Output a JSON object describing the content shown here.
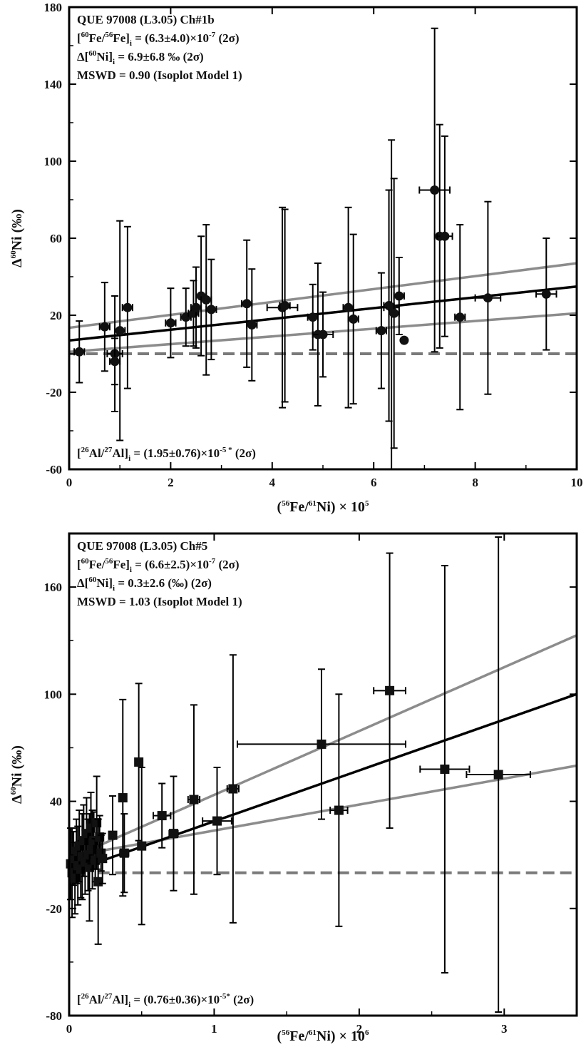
{
  "chart_data": [
    {
      "type": "scatter",
      "xlim": [
        0,
        10
      ],
      "ylim": [
        -60,
        180
      ],
      "x_ticks": [
        0,
        2,
        4,
        6,
        8,
        10
      ],
      "y_ticks": [
        -60,
        -20,
        20,
        60,
        100,
        140,
        180
      ],
      "x_tick_labels": [
        "0",
        "2",
        "4",
        "6",
        "8",
        "10"
      ],
      "y_tick_labels": [
        "-60",
        "-20",
        "20",
        "60",
        "100",
        "140",
        "180"
      ],
      "xlabel_lines": {
        "a": "(",
        "b": "56",
        "c": "Fe/",
        "d": "61",
        "e": "Ni) × 10",
        "f": "5"
      },
      "ylabel_lines": {
        "a": "Δ",
        "b": "60",
        "c": "Ni (‰)"
      },
      "annotations": {
        "line1": "QUE 97008 (L3.05) Ch#1b",
        "line2": {
          "a": "[",
          "b": "60",
          "c": "Fe/",
          "d": "56",
          "e": "Fe]",
          "f": "i",
          "g": " = (6.3±4.0)×10",
          "h": "-7",
          "i": " (2σ)"
        },
        "line3": {
          "a": "Δ[",
          "b": "60",
          "c": "Ni]",
          "d": "i",
          "e": " = 6.9±6.8 ‰ (2σ)"
        },
        "line4": "MSWD = 0.90 (Isoplot Model 1)",
        "line5": {
          "a": "[",
          "b": "26",
          "c": "Al/",
          "d": "27",
          "e": "Al]",
          "f": "i",
          "g": "  = (1.95±0.76)×10",
          "h": "-5 *",
          "i": " (2σ)"
        }
      },
      "points": [
        {
          "x": 0.2,
          "y": 1,
          "yerr": 16,
          "xerr": 0.1
        },
        {
          "x": 0.7,
          "y": 14,
          "yerr": 23,
          "xerr": 0.1
        },
        {
          "x": 0.9,
          "y": 0,
          "yerr": 30,
          "xerr": 0.15
        },
        {
          "x": 0.9,
          "y": -4,
          "yerr": 12,
          "xerr": 0.1
        },
        {
          "x": 1.0,
          "y": 12,
          "yerr": 57,
          "xerr": 0.1
        },
        {
          "x": 1.15,
          "y": 24,
          "yerr": 42,
          "xerr": 0.1
        },
        {
          "x": 2.0,
          "y": 16,
          "yerr": 18,
          "xerr": 0.1
        },
        {
          "x": 2.3,
          "y": 19,
          "yerr": 15,
          "xerr": 0.1
        },
        {
          "x": 2.45,
          "y": 21,
          "yerr": 17,
          "xerr": 0.1
        },
        {
          "x": 2.5,
          "y": 24,
          "yerr": 21,
          "xerr": 0.1
        },
        {
          "x": 2.6,
          "y": 30,
          "yerr": 31,
          "xerr": 0.1
        },
        {
          "x": 2.7,
          "y": 28,
          "yerr": 39,
          "xerr": 0.1
        },
        {
          "x": 2.8,
          "y": 23,
          "yerr": 26,
          "xerr": 0.1
        },
        {
          "x": 3.5,
          "y": 26,
          "yerr": 33,
          "xerr": 0.1
        },
        {
          "x": 3.6,
          "y": 15,
          "yerr": 29,
          "xerr": 0.1
        },
        {
          "x": 4.2,
          "y": 24,
          "yerr": 52,
          "xerr": 0.3
        },
        {
          "x": 4.25,
          "y": 25,
          "yerr": 50,
          "xerr": 0.1
        },
        {
          "x": 4.8,
          "y": 19,
          "yerr": 17,
          "xerr": 0.1
        },
        {
          "x": 4.9,
          "y": 10,
          "yerr": 37,
          "xerr": 0.1
        },
        {
          "x": 5.0,
          "y": 10,
          "yerr": 22,
          "xerr": 0.2
        },
        {
          "x": 5.5,
          "y": 24,
          "yerr": 52,
          "xerr": 0.1
        },
        {
          "x": 5.6,
          "y": 18,
          "yerr": 44,
          "xerr": 0.1
        },
        {
          "x": 6.15,
          "y": 12,
          "yerr": 30,
          "xerr": 0.1
        },
        {
          "x": 6.3,
          "y": 25,
          "yerr": 60,
          "xerr": 0.1
        },
        {
          "x": 6.35,
          "y": 24,
          "yerr": 87,
          "xerr": 0.15
        },
        {
          "x": 6.4,
          "y": 21,
          "yerr": 70,
          "xerr": 0.1
        },
        {
          "x": 6.5,
          "y": 30,
          "yerr": 20,
          "xerr": 0.1
        },
        {
          "x": 6.6,
          "y": 7,
          "yerr": 0,
          "xerr": 0
        },
        {
          "x": 7.2,
          "y": 85,
          "yerr": 84,
          "xerr": 0.3
        },
        {
          "x": 7.3,
          "y": 61,
          "yerr": 58,
          "xerr": 0.1
        },
        {
          "x": 7.4,
          "y": 61,
          "yerr": 52,
          "xerr": 0.15
        },
        {
          "x": 7.7,
          "y": 19,
          "yerr": 48,
          "xerr": 0.1
        },
        {
          "x": 8.25,
          "y": 29,
          "yerr": 50,
          "xerr": 0.25
        },
        {
          "x": 9.4,
          "y": 31,
          "yerr": 29,
          "xerr": 0.2
        }
      ],
      "fit": {
        "intercept": 6.9,
        "slope": 2.8
      },
      "envelope_upper": [
        [
          0,
          13.5
        ],
        [
          10,
          47
        ]
      ],
      "envelope_lower": [
        [
          0,
          1
        ],
        [
          10,
          21
        ]
      ],
      "reference_y": 0
    },
    {
      "type": "scatter",
      "xlim": [
        0,
        3.5
      ],
      "ylim": [
        -80,
        190
      ],
      "x_ticks": [
        0,
        1,
        2,
        3
      ],
      "y_ticks": [
        -80,
        -20,
        40,
        100,
        160
      ],
      "x_tick_labels": [
        "0",
        "1",
        "2",
        "3"
      ],
      "y_tick_labels": [
        "-80",
        "-20",
        "40",
        "100",
        "160"
      ],
      "xlabel_lines": {
        "a": "(",
        "b": "56",
        "c": "Fe/",
        "d": "61",
        "e": "Ni) × 10",
        "f": "6"
      },
      "ylabel_lines": {
        "a": "Δ",
        "b": "60",
        "c": "Ni (‰)"
      },
      "annotations": {
        "line1": "QUE 97008 (L3.05) Ch#5",
        "line2": {
          "a": "[",
          "b": "60",
          "c": "Fe/",
          "d": "56",
          "e": "Fe]",
          "f": "i",
          "g": " = (6.6±2.5)×10",
          "h": "-7",
          "i": " (2σ)"
        },
        "line3": {
          "a": "Δ[",
          "b": "60",
          "c": "Ni]",
          "d": "i",
          "e": " = 0.3±2.6 (‰) (2σ)"
        },
        "line4": "MSWD = 1.03 (Isoplot Model 1)",
        "line5": {
          "a": "[",
          "b": "26",
          "c": "Al/",
          "d": "27",
          "e": "Al]",
          "f": "i",
          "g": "  = (0.76±0.36)×10",
          "h": "-5*",
          "i": " (2σ)"
        }
      },
      "points": [
        {
          "x": 0.01,
          "y": 5,
          "yerr": 20,
          "xerr": 0.01
        },
        {
          "x": 0.02,
          "y": 0,
          "yerr": 25,
          "xerr": 0.01
        },
        {
          "x": 0.03,
          "y": 8,
          "yerr": 15,
          "xerr": 0.01
        },
        {
          "x": 0.04,
          "y": -3,
          "yerr": 20,
          "xerr": 0.01
        },
        {
          "x": 0.05,
          "y": 12,
          "yerr": 18,
          "xerr": 0.01
        },
        {
          "x": 0.06,
          "y": 4,
          "yerr": 22,
          "xerr": 0.01
        },
        {
          "x": 0.07,
          "y": 15,
          "yerr": 20,
          "xerr": 0.01
        },
        {
          "x": 0.08,
          "y": 2,
          "yerr": 16,
          "xerr": 0.01
        },
        {
          "x": 0.09,
          "y": 9,
          "yerr": 24,
          "xerr": 0.01
        },
        {
          "x": 0.1,
          "y": 18,
          "yerr": 20,
          "xerr": 0.01
        },
        {
          "x": 0.11,
          "y": 6,
          "yerr": 18,
          "xerr": 0.01
        },
        {
          "x": 0.12,
          "y": 22,
          "yerr": 20,
          "xerr": 0.02
        },
        {
          "x": 0.13,
          "y": 10,
          "yerr": 20,
          "xerr": 0.01
        },
        {
          "x": 0.14,
          "y": 3,
          "yerr": 30,
          "xerr": 0.01
        },
        {
          "x": 0.15,
          "y": 25,
          "yerr": 20,
          "xerr": 0.02
        },
        {
          "x": 0.16,
          "y": 13,
          "yerr": 22,
          "xerr": 0.01
        },
        {
          "x": 0.17,
          "y": 18,
          "yerr": 16,
          "xerr": 0.01
        },
        {
          "x": 0.18,
          "y": 7,
          "yerr": 12,
          "xerr": 0.01
        },
        {
          "x": 0.19,
          "y": 28,
          "yerr": 26,
          "xerr": 0.02
        },
        {
          "x": 0.2,
          "y": -5,
          "yerr": 35,
          "xerr": 0.01
        },
        {
          "x": 0.21,
          "y": 20,
          "yerr": 12,
          "xerr": 0.01
        },
        {
          "x": 0.22,
          "y": 11,
          "yerr": 10,
          "xerr": 0.01
        },
        {
          "x": 0.23,
          "y": 8,
          "yerr": 14,
          "xerr": 0.01
        },
        {
          "x": 0.3,
          "y": 21,
          "yerr": 22,
          "xerr": 0.02
        },
        {
          "x": 0.37,
          "y": 42,
          "yerr": 55,
          "xerr": 0.02
        },
        {
          "x": 0.38,
          "y": 11,
          "yerr": 22,
          "xerr": 0.03
        },
        {
          "x": 0.48,
          "y": 62,
          "yerr": 44,
          "xerr": 0.02
        },
        {
          "x": 0.5,
          "y": 15,
          "yerr": 44,
          "xerr": 0.02
        },
        {
          "x": 0.64,
          "y": 32,
          "yerr": 18,
          "xerr": 0.06
        },
        {
          "x": 0.72,
          "y": 22,
          "yerr": 32,
          "xerr": 0.03
        },
        {
          "x": 0.86,
          "y": 41,
          "yerr": 53,
          "xerr": 0.04
        },
        {
          "x": 1.02,
          "y": 29,
          "yerr": 30,
          "xerr": 0.1
        },
        {
          "x": 1.13,
          "y": 47,
          "yerr": 75,
          "xerr": 0.04
        },
        {
          "x": 1.74,
          "y": 72,
          "yerr": 42,
          "xerr": 0.58
        },
        {
          "x": 1.86,
          "y": 35,
          "yerr": 65,
          "xerr": 0.06
        },
        {
          "x": 2.21,
          "y": 102,
          "yerr": 77,
          "xerr": 0.11
        },
        {
          "x": 2.59,
          "y": 58,
          "yerr": 114,
          "xerr": 0.17
        },
        {
          "x": 2.96,
          "y": 55,
          "yerr": 133,
          "xerr": 0.22
        }
      ],
      "fit": {
        "intercept": 0.3,
        "slope": 28.5
      },
      "envelope_upper": [
        [
          0.2,
          15
        ],
        [
          3.5,
          133
        ]
      ],
      "envelope_lower": [
        [
          0.2,
          12
        ],
        [
          3.5,
          60
        ]
      ],
      "reference_y": 0
    }
  ]
}
